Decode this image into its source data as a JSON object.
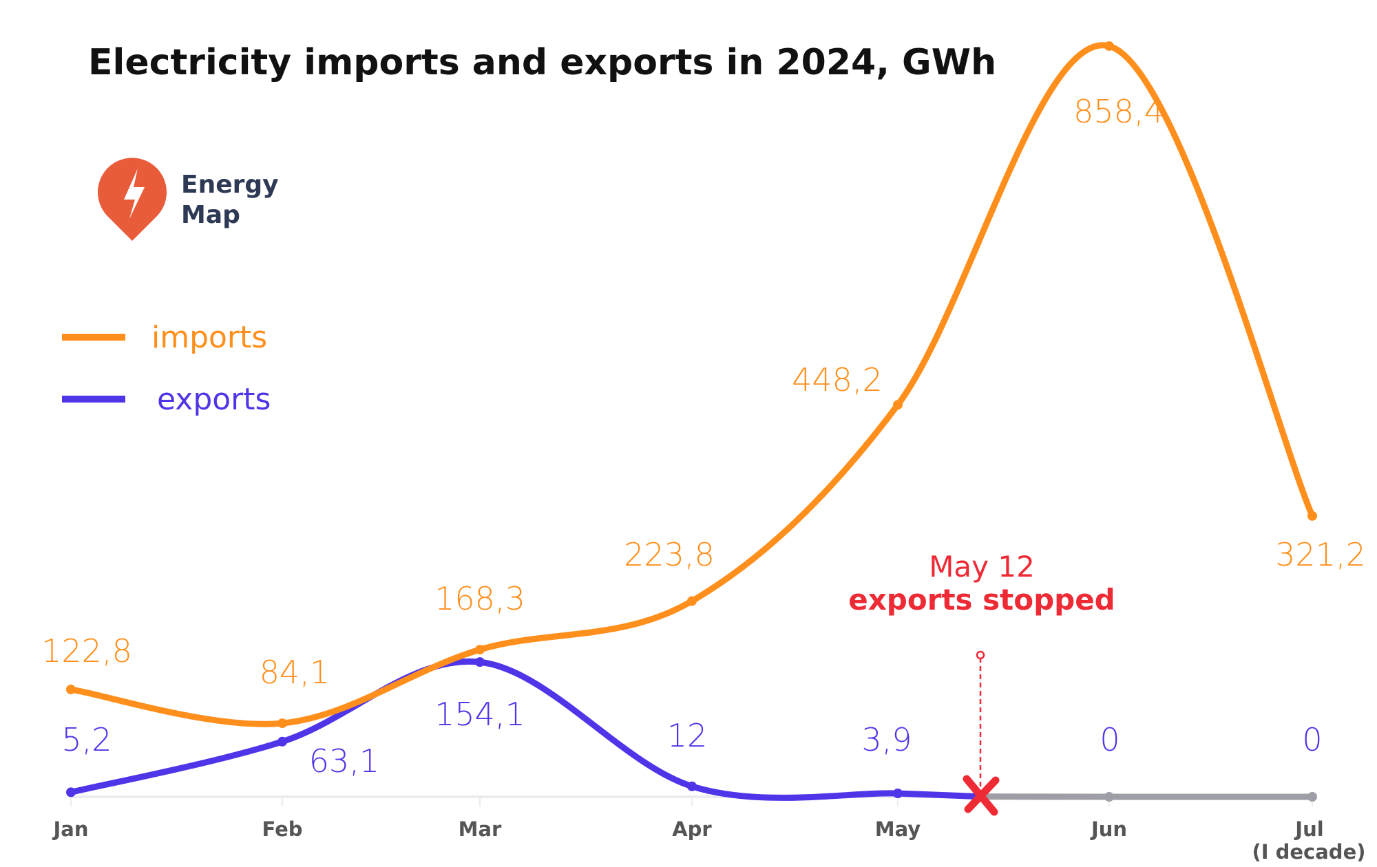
{
  "logo": {
    "line1": "Energy",
    "line2": "Map",
    "color": "#e85c3a"
  },
  "chart_data": {
    "type": "line",
    "title": "Electricity imports and exports in 2024, GWh",
    "categories": [
      "Jan",
      "Feb",
      "Mar",
      "Apr",
      "May",
      "Jun",
      "Jul"
    ],
    "category_sublabels": [
      "",
      "",
      "",
      "",
      "",
      "",
      "(I decade)"
    ],
    "xlabel": "",
    "ylabel": "",
    "ylim": [
      0,
      860
    ],
    "grid": false,
    "legend_placement": "left",
    "series": [
      {
        "name": "imports",
        "color": "#ff8f1c",
        "values": [
          122.8,
          84.1,
          168.3,
          223.8,
          448.2,
          858.4,
          321.2
        ],
        "labels": [
          "122,8",
          "84,1",
          "168,3",
          "223,8",
          "448,2",
          "858,4",
          "321,2"
        ]
      },
      {
        "name": "exports",
        "color": "#4f35e8",
        "stopped_color": "#9e9ea6",
        "values": [
          5.2,
          63.1,
          154.1,
          12,
          3.9,
          0,
          0
        ],
        "labels": [
          "5,2",
          "63,1",
          "154,1",
          "12",
          "3,9",
          "0",
          "0"
        ]
      }
    ],
    "annotation": {
      "date": "May 12",
      "text": "exports stopped",
      "color": "#ee2a35",
      "position_category": "May 12"
    }
  }
}
